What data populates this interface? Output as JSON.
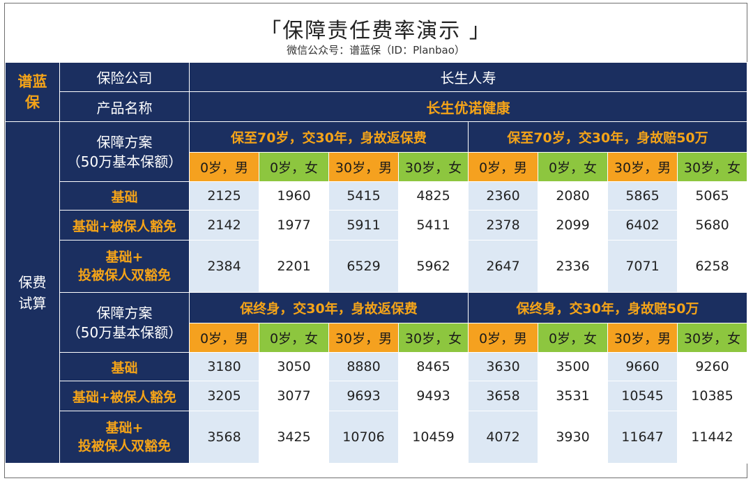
{
  "header": {
    "title": "「保障责任费率演示 」",
    "subtitle": "微信公众号：谱蓝保（ID：Planbao）"
  },
  "brand": "谱蓝保",
  "side_label": "保费试算",
  "company_label": "保险公司",
  "company_value": "长生人寿",
  "product_label": "产品名称",
  "product_value": "长生优诺健康",
  "plan_label_line1": "保障方案",
  "plan_label_line2": "（50万基本保额）",
  "demographics": [
    "0岁，男",
    "0岁，女",
    "30岁，男",
    "30岁，女",
    "0岁，男",
    "0岁，女",
    "30岁，男",
    "30岁，女"
  ],
  "sections": [
    {
      "plans": [
        "保至70岁，交30年，身故返保费",
        "保至70岁，交30年，身故赔50万"
      ],
      "rows": [
        {
          "label": "基础",
          "values": [
            "2125",
            "1960",
            "5415",
            "4825",
            "2360",
            "2080",
            "5865",
            "5065"
          ]
        },
        {
          "label": "基础+被保人豁免",
          "values": [
            "2142",
            "1977",
            "5911",
            "5411",
            "2378",
            "2099",
            "6402",
            "5680"
          ]
        },
        {
          "label_line1": "基础+",
          "label_line2": "投被保人双豁免",
          "values": [
            "2384",
            "2201",
            "6529",
            "5962",
            "2647",
            "2336",
            "7071",
            "6258"
          ]
        }
      ]
    },
    {
      "plans": [
        "保终身，交30年，身故返保费",
        "保终身，交30年，身故赔50万"
      ],
      "rows": [
        {
          "label": "基础",
          "values": [
            "3180",
            "3050",
            "8880",
            "8465",
            "3630",
            "3500",
            "9660",
            "9260"
          ]
        },
        {
          "label": "基础+被保人豁免",
          "values": [
            "3205",
            "3077",
            "9693",
            "9493",
            "3658",
            "3531",
            "10545",
            "10385"
          ]
        },
        {
          "label_line1": "基础+",
          "label_line2": "投被保人双豁免",
          "values": [
            "3568",
            "3425",
            "10706",
            "10459",
            "4072",
            "3930",
            "11647",
            "11442"
          ]
        }
      ]
    }
  ]
}
